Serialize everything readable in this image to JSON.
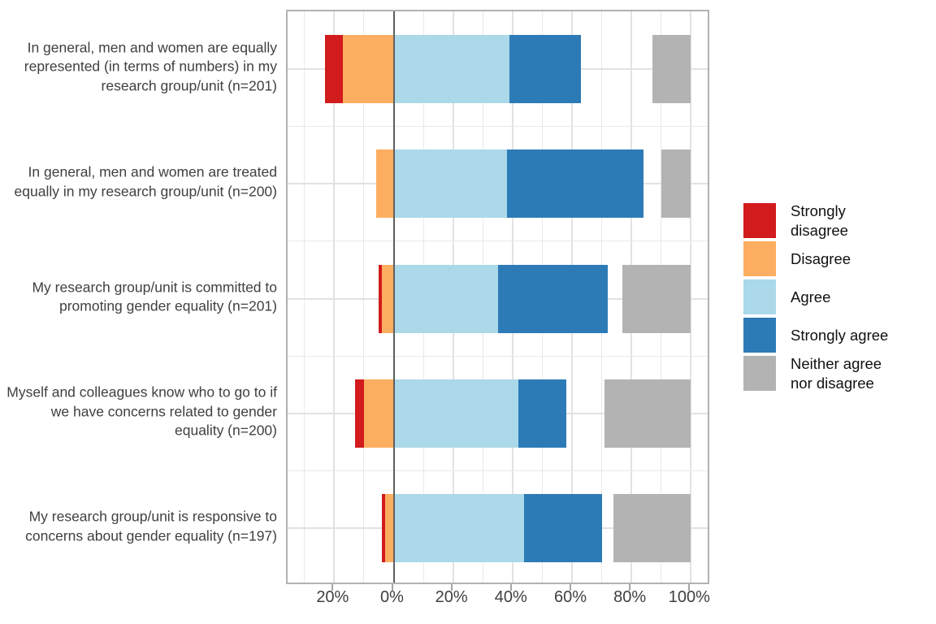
{
  "chart_data": {
    "type": "bar",
    "subtype": "diverging-stacked-likert",
    "orientation": "horizontal",
    "title": "",
    "xlabel": "",
    "ylabel": "",
    "grid": true,
    "legend_position": "right",
    "zero_line": true,
    "categories": [
      "In general, men and women are equally represented (in terms of numbers) in my  research group/unit (n=201)",
      "In general, men and women are treated equally in my research group/unit (n=200)",
      "My  research group/unit is committed to promoting gender equality (n=201)",
      "Myself and colleagues know who to go to if we have concerns related to gender equality (n=200)",
      "My  research group/unit is responsive to concerns about gender equality (n=197)"
    ],
    "series": [
      {
        "name": "Strongly disagree",
        "color": "#d21b1c",
        "side": "negative",
        "values": [
          6,
          0,
          1,
          3,
          1
        ]
      },
      {
        "name": "Disagree",
        "color": "#fdae61",
        "side": "negative",
        "values": [
          17,
          6,
          4,
          10,
          3
        ]
      },
      {
        "name": "Agree",
        "color": "#abd9e9",
        "side": "positive",
        "values": [
          39,
          38,
          35,
          42,
          44
        ]
      },
      {
        "name": "Strongly agree",
        "color": "#2d7bb6",
        "side": "positive",
        "values": [
          24,
          46,
          37,
          16,
          26
        ]
      },
      {
        "name": "Neither agree nor disagree",
        "color": "#b3b3b3",
        "side": "right-anchored-at-100",
        "values": [
          13,
          10,
          23,
          29,
          26
        ]
      }
    ],
    "x_axis": {
      "unit": "percent",
      "tick_values": [
        -20,
        0,
        20,
        40,
        60,
        80,
        100
      ],
      "tick_labels": [
        "20%",
        "0%",
        "20%",
        "40%",
        "60%",
        "80%",
        "100%"
      ],
      "minor_step": 10,
      "domain": [
        -35.6,
        106.8
      ]
    }
  },
  "legend": {
    "items": [
      {
        "label": "Strongly\ndisagree",
        "color": "#d21b1c"
      },
      {
        "label": "Disagree",
        "color": "#fdae61"
      },
      {
        "label": "Agree",
        "color": "#abd9e9"
      },
      {
        "label": "Strongly agree",
        "color": "#2d7bb6"
      },
      {
        "label": "Neither agree\nnor disagree",
        "color": "#b3b3b3"
      }
    ]
  },
  "colors": {
    "strongly_disagree": "#d21b1c",
    "disagree": "#fdae61",
    "agree": "#abd9e9",
    "strongly_agree": "#2d7bb6",
    "neither": "#b3b3b3",
    "zero_line": "#5f5f5f",
    "panel_border": "#b2b2b2",
    "gridline": "#e2e2e2",
    "axis_text": "#404040",
    "legend_text": "#111111"
  }
}
